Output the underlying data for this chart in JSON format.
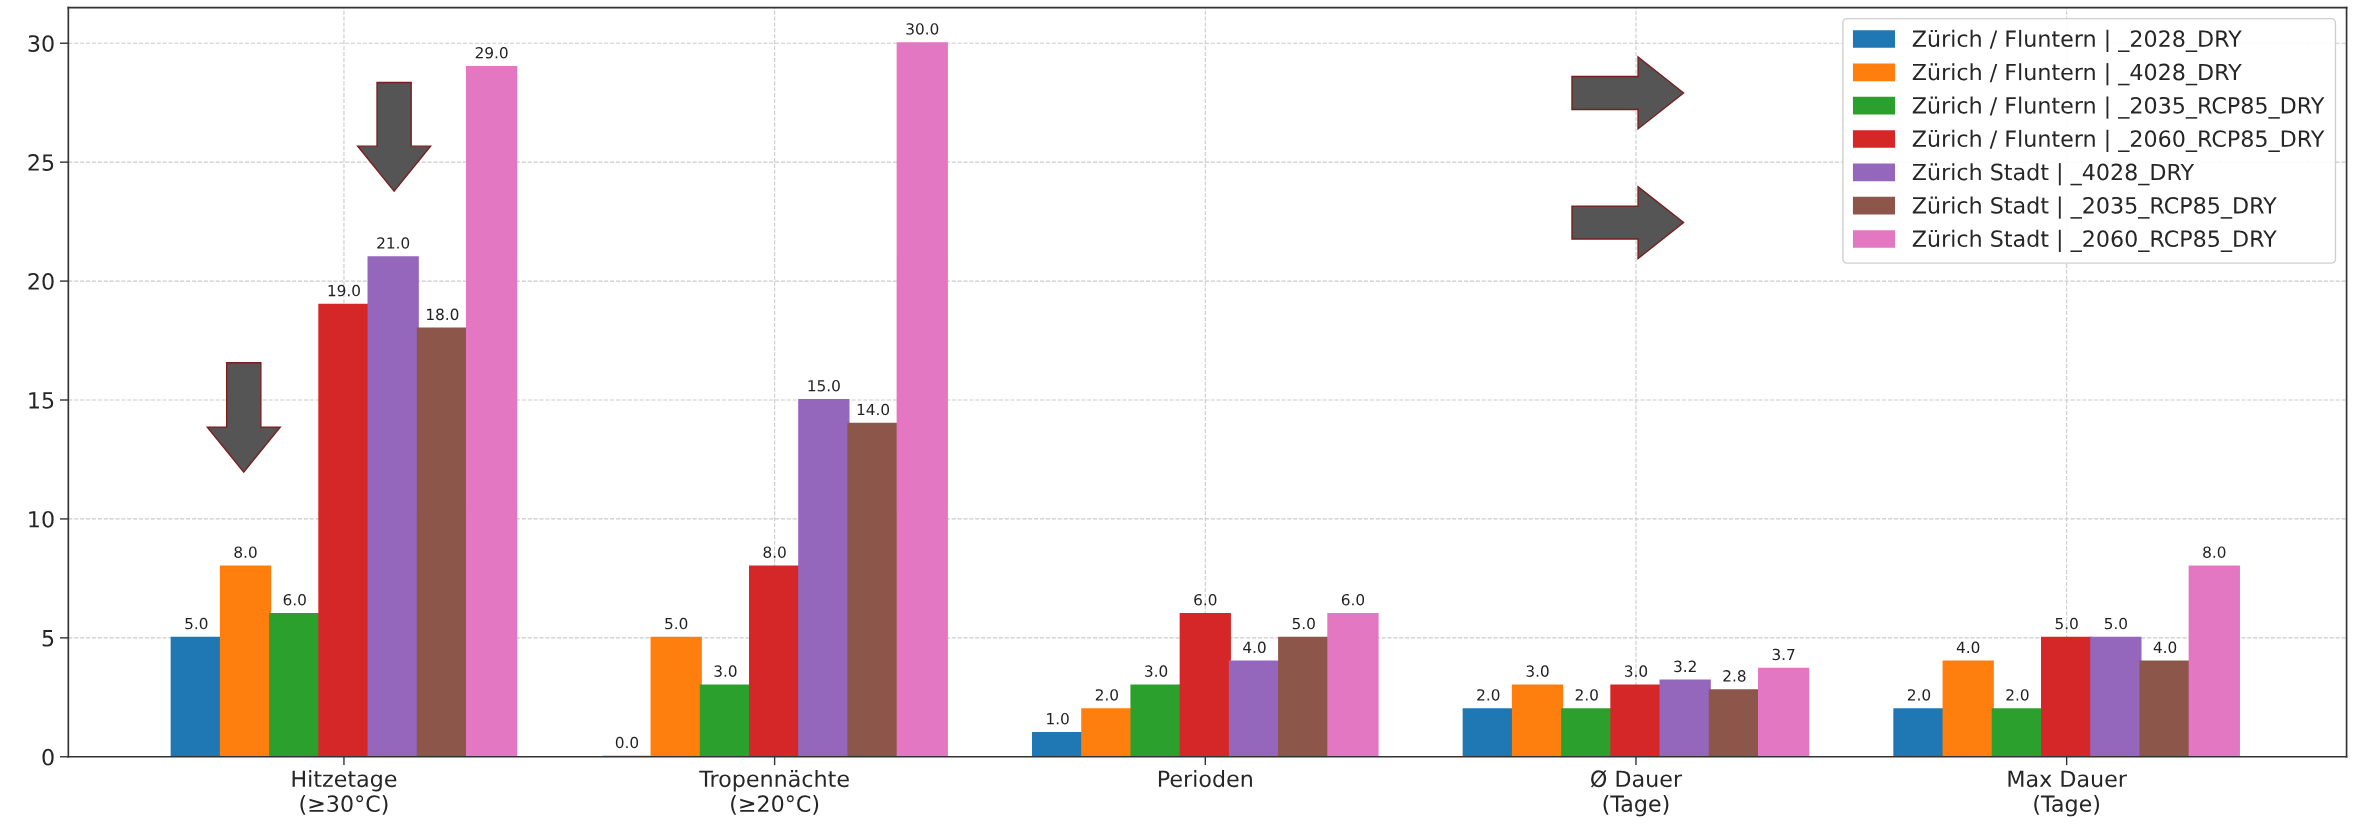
{
  "chart_data": {
    "type": "bar",
    "categories": [
      "Hitzetage\n(≥30°C)",
      "Tropennächte\n(≥20°C)",
      "Perioden",
      "Ø Dauer\n(Tage)",
      "Max Dauer\n(Tage)"
    ],
    "series": [
      {
        "name": "Zürich / Fluntern | _2028_DRY",
        "color": "#1f77b4",
        "values": [
          5,
          0,
          1,
          2,
          2
        ],
        "value_labels": [
          "5.0",
          "0.0",
          "1.0",
          "2.0",
          "2.0"
        ]
      },
      {
        "name": "Zürich / Fluntern | _4028_DRY",
        "color": "#ff7f0e",
        "values": [
          8,
          5,
          2,
          3,
          4
        ],
        "value_labels": [
          "8.0",
          "5.0",
          "2.0",
          "3.0",
          "4.0"
        ]
      },
      {
        "name": "Zürich / Fluntern | _2035_RCP85_DRY",
        "color": "#2ca02c",
        "values": [
          6,
          3,
          3,
          2,
          2
        ],
        "value_labels": [
          "6.0",
          "3.0",
          "3.0",
          "2.0",
          "2.0"
        ]
      },
      {
        "name": "Zürich / Fluntern | _2060_RCP85_DRY",
        "color": "#d62728",
        "values": [
          19,
          8,
          6,
          3,
          5
        ],
        "value_labels": [
          "19.0",
          "8.0",
          "6.0",
          "3.0",
          "5.0"
        ]
      },
      {
        "name": "Zürich Stadt | _4028_DRY",
        "color": "#9467bd",
        "values": [
          21,
          15,
          4,
          3.2,
          5
        ],
        "value_labels": [
          "21.0",
          "15.0",
          "4.0",
          "3.2",
          "5.0"
        ]
      },
      {
        "name": "Zürich Stadt | _2035_RCP85_DRY",
        "color": "#8c564b",
        "values": [
          18,
          14,
          5,
          2.8,
          4
        ],
        "value_labels": [
          "18.0",
          "14.0",
          "5.0",
          "2.8",
          "4.0"
        ]
      },
      {
        "name": "Zürich Stadt | _2060_RCP85_DRY",
        "color": "#e377c2",
        "values": [
          29,
          30,
          6,
          3.7,
          8
        ],
        "value_labels": [
          "29.0",
          "30.0",
          "6.0",
          "3.7",
          "8.0"
        ]
      }
    ],
    "ylim": [
      0,
      31.5
    ],
    "yticks": [
      0,
      5,
      10,
      15,
      20,
      25,
      30
    ],
    "grid": true,
    "legend": "top right"
  }
}
